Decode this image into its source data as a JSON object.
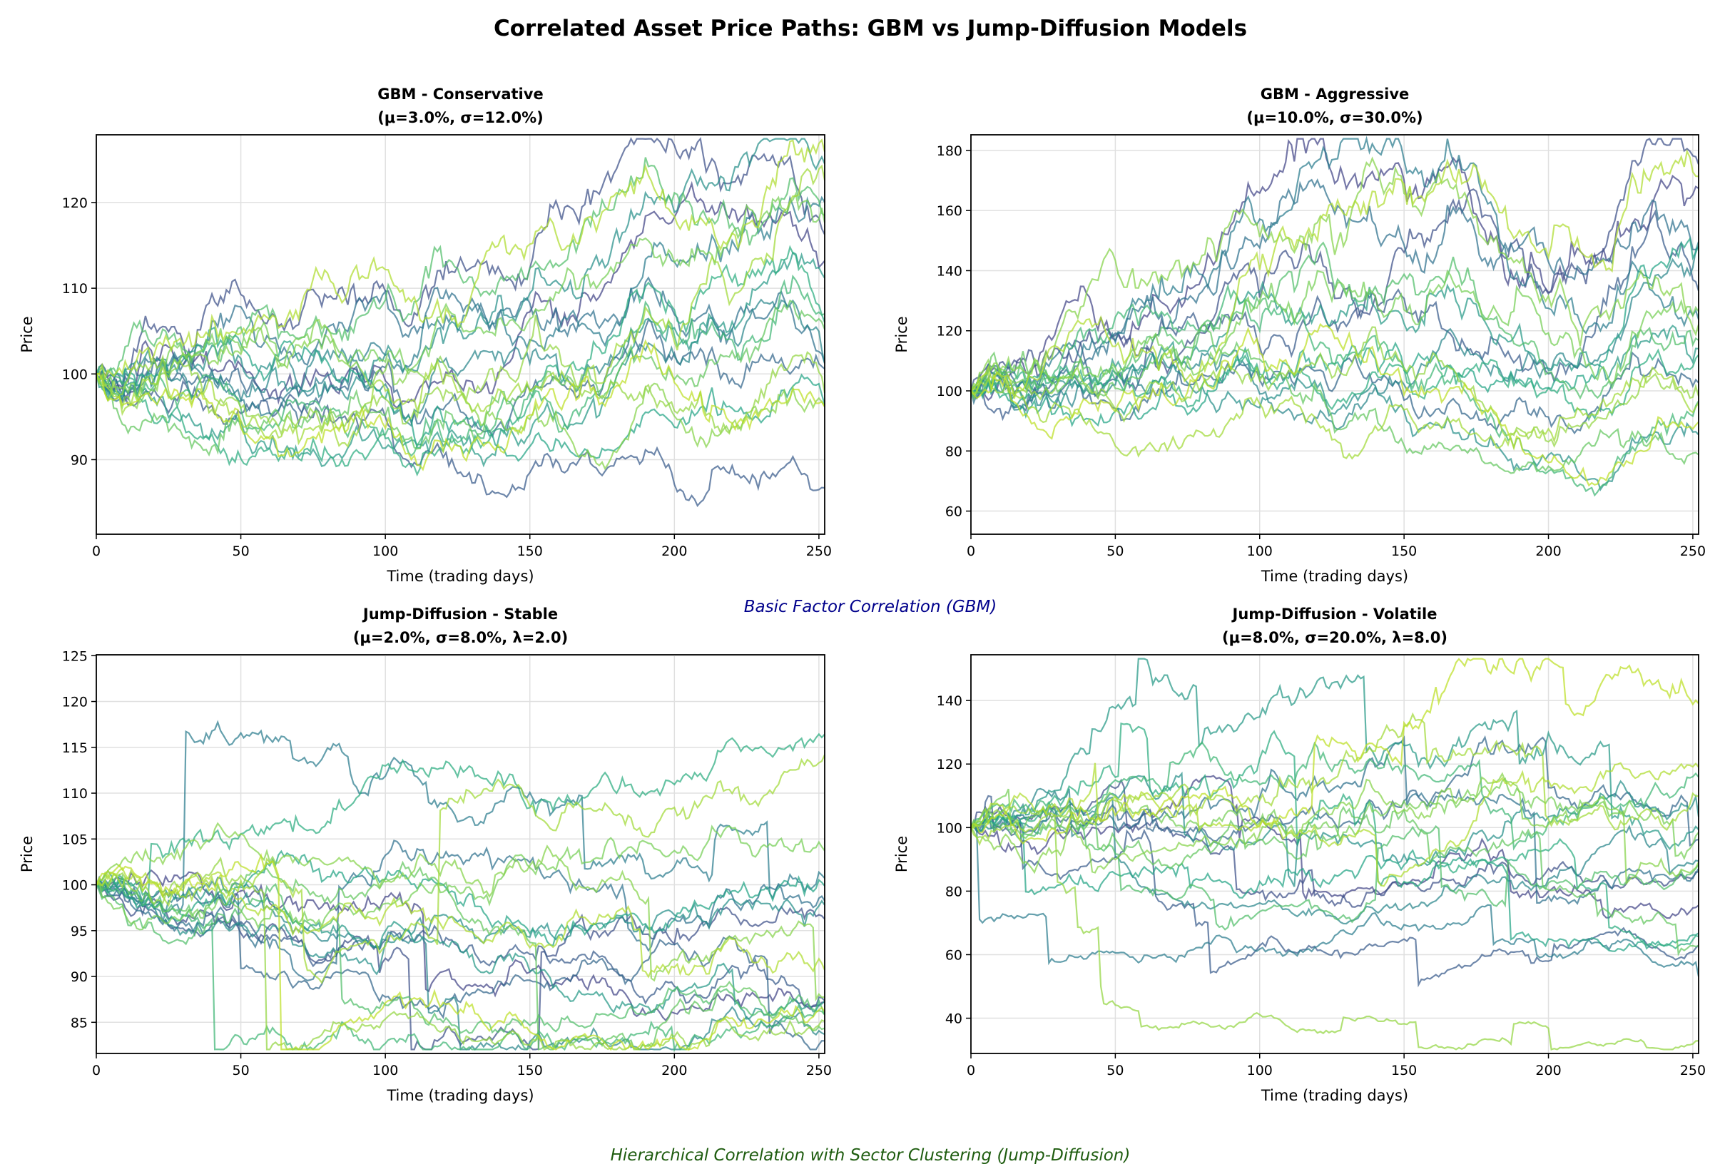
{
  "title": "Correlated Asset Price Paths: GBM vs Jump-Diffusion Models",
  "annotations": {
    "gbm": "Basic Factor Correlation (GBM)",
    "jump": "Hierarchical Correlation with Sector Clustering (Jump-Diffusion)",
    "gbm_color": "#00008b",
    "jump_color": "#1e5c0f"
  },
  "chart_data": [
    {
      "type": "line",
      "title1": "GBM - Conservative",
      "title2": "(μ=3.0%, σ=12.0%)",
      "xlabel": "Time (trading days)",
      "ylabel": "Price",
      "xlim": [
        0,
        252
      ],
      "ylim": [
        81.3,
        127.9
      ],
      "xticks": [
        0,
        50,
        100,
        150,
        200,
        250
      ],
      "yticks": [
        90,
        100,
        110,
        120
      ],
      "n_paths": 20,
      "start": 100,
      "mu": 0.03,
      "sigma": 0.12,
      "lambda": 0,
      "seed": 11,
      "grid": true
    },
    {
      "type": "line",
      "title1": "GBM - Aggressive",
      "title2": "(μ=10.0%, σ=30.0%)",
      "xlabel": "Time (trading days)",
      "ylabel": "Price",
      "xlim": [
        0,
        252
      ],
      "ylim": [
        52.3,
        185.2
      ],
      "xticks": [
        0,
        50,
        100,
        150,
        200,
        250
      ],
      "yticks": [
        60,
        80,
        100,
        120,
        140,
        160,
        180
      ],
      "n_paths": 20,
      "start": 100,
      "mu": 0.1,
      "sigma": 0.3,
      "lambda": 0,
      "seed": 23,
      "grid": true
    },
    {
      "type": "line",
      "title1": "Jump-Diffusion - Stable",
      "title2": "(μ=2.0%, σ=8.0%, λ=2.0)",
      "xlabel": "Time (trading days)",
      "ylabel": "Price",
      "xlim": [
        0,
        252
      ],
      "ylim": [
        81.6,
        125.1
      ],
      "xticks": [
        0,
        50,
        100,
        150,
        200,
        250
      ],
      "yticks": [
        85,
        90,
        95,
        100,
        105,
        110,
        115,
        120,
        125
      ],
      "n_paths": 20,
      "start": 100,
      "mu": 0.02,
      "sigma": 0.08,
      "lambda": 2.0,
      "seed": 37,
      "grid": true
    },
    {
      "type": "line",
      "title1": "Jump-Diffusion - Volatile",
      "title2": "(μ=8.0%, σ=20.0%, λ=8.0)",
      "xlabel": "Time (trading days)",
      "ylabel": "Price",
      "xlim": [
        0,
        252
      ],
      "ylim": [
        28.9,
        154.4
      ],
      "xticks": [
        0,
        50,
        100,
        150,
        200,
        250
      ],
      "yticks": [
        40,
        60,
        80,
        100,
        120,
        140
      ],
      "n_paths": 20,
      "start": 100,
      "mu": 0.08,
      "sigma": 0.2,
      "lambda": 8.0,
      "seed": 51,
      "grid": true
    }
  ]
}
